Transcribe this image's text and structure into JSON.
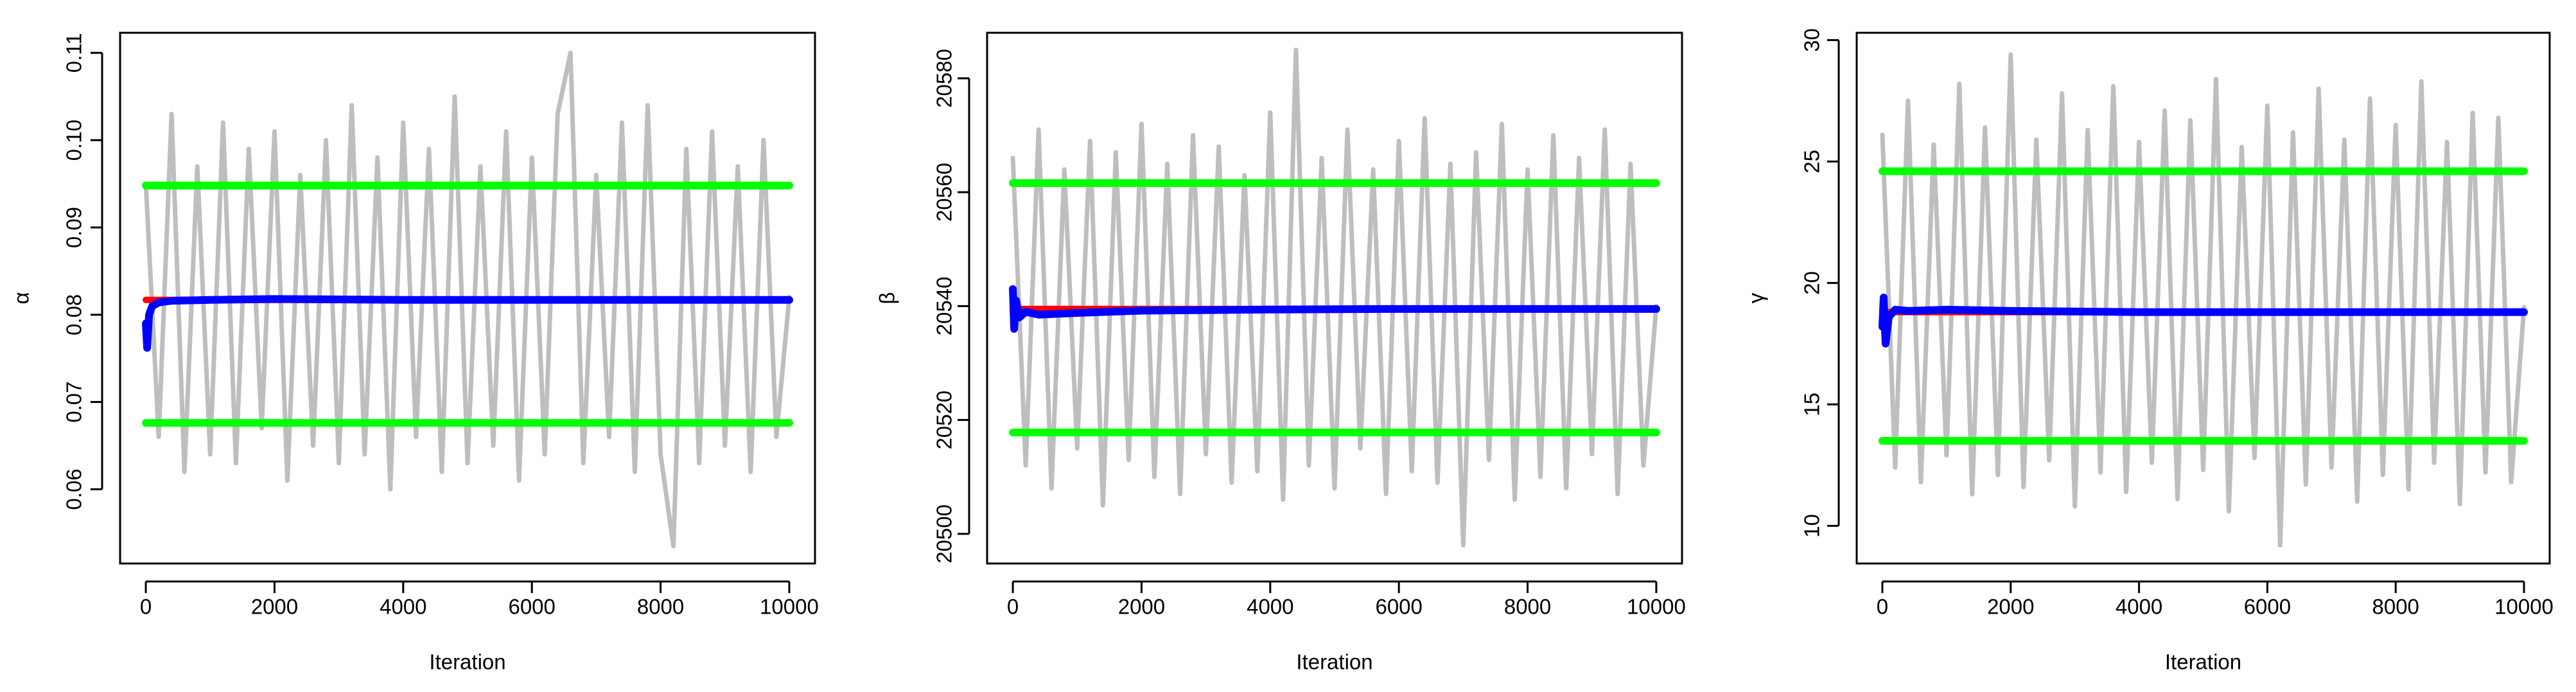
{
  "chart_data": [
    {
      "type": "line",
      "x_label": "Iteration",
      "y_label": "α",
      "xlim": [
        -400,
        10400
      ],
      "ylim": [
        0.0515,
        0.1123
      ],
      "xticks": [
        0,
        2000,
        4000,
        6000,
        8000,
        10000
      ],
      "yticks": [
        0.06,
        0.07,
        0.08,
        0.09,
        {
          "value": 0.1,
          "label": "0.10"
        },
        0.11
      ],
      "series": [
        {
          "color": "#bebebe",
          "x": [
            0,
            200,
            400,
            600,
            800,
            1000,
            1200,
            1400,
            1600,
            1800,
            2000,
            2200,
            2400,
            2600,
            2800,
            3000,
            3200,
            3400,
            3600,
            3800,
            4000,
            4200,
            4400,
            4600,
            4800,
            5000,
            5200,
            5400,
            5600,
            5800,
            6000,
            6200,
            6400,
            6600,
            6800,
            7000,
            7200,
            7400,
            7600,
            7800,
            8000,
            8200,
            8400,
            8600,
            8800,
            9000,
            9200,
            9400,
            9600,
            9800,
            10000
          ],
          "values": [
            0.095,
            0.066,
            0.103,
            0.062,
            0.097,
            0.064,
            0.102,
            0.063,
            0.099,
            0.067,
            0.101,
            0.061,
            0.096,
            0.065,
            0.1,
            0.063,
            0.104,
            0.064,
            0.098,
            0.06,
            0.102,
            0.066,
            0.099,
            0.062,
            0.105,
            0.063,
            0.097,
            0.065,
            0.101,
            0.061,
            0.098,
            0.064,
            0.103,
            0.11,
            0.063,
            0.096,
            0.066,
            0.102,
            0.062,
            0.104,
            0.064,
            0.0535,
            0.099,
            0.063,
            0.101,
            0.065,
            0.097,
            0.062,
            0.1,
            0.066,
            0.082
          ]
        },
        {
          "color": "#ff0000",
          "x": [
            0,
            10000
          ],
          "values": [
            0.0817,
            0.0817
          ]
        },
        {
          "color": "#00ff00",
          "x": [
            0,
            10000
          ],
          "values": [
            0.0676,
            0.0676
          ]
        },
        {
          "color": "#00ff00",
          "x": [
            0,
            10000
          ],
          "values": [
            0.0948,
            0.0948
          ]
        },
        {
          "color": "#0000ff",
          "x": [
            0,
            20,
            50,
            100,
            200,
            400,
            1000,
            2000,
            4000,
            6000,
            8000,
            10000
          ],
          "values": [
            0.079,
            0.0762,
            0.08,
            0.081,
            0.0814,
            0.0816,
            0.0817,
            0.0818,
            0.0817,
            0.0817,
            0.0817,
            0.0817
          ]
        }
      ]
    },
    {
      "type": "line",
      "x_label": "Iteration",
      "y_label": "β",
      "xlim": [
        -400,
        10400
      ],
      "ylim": [
        20494.8,
        20588
      ],
      "xticks": [
        0,
        2000,
        4000,
        6000,
        8000,
        10000
      ],
      "yticks": [
        20500,
        20520,
        20540,
        20560,
        20580
      ],
      "series": [
        {
          "color": "#bebebe",
          "x": [
            0,
            200,
            400,
            600,
            800,
            1000,
            1200,
            1400,
            1600,
            1800,
            2000,
            2200,
            2400,
            2600,
            2800,
            3000,
            3200,
            3400,
            3600,
            3800,
            4000,
            4200,
            4400,
            4600,
            4800,
            5000,
            5200,
            5400,
            5600,
            5800,
            6000,
            6200,
            6400,
            6600,
            6800,
            7000,
            7200,
            7400,
            7600,
            7800,
            8000,
            8200,
            8400,
            8600,
            8800,
            9000,
            9200,
            9400,
            9600,
            9800,
            10000
          ],
          "values": [
            20566,
            20512,
            20571,
            20508,
            20564,
            20515,
            20569,
            20505,
            20567,
            20513,
            20572,
            20510,
            20565,
            20507,
            20570,
            20514,
            20568,
            20509,
            20563,
            20511,
            20574,
            20506,
            20585,
            20512,
            20566,
            20508,
            20571,
            20515,
            20564,
            20507,
            20569,
            20511,
            20573,
            20509,
            20565,
            20498,
            20567,
            20513,
            20572,
            20506,
            20564,
            20510,
            20570,
            20508,
            20566,
            20514,
            20571,
            20507,
            20565,
            20512,
            20540
          ]
        },
        {
          "color": "#ff0000",
          "x": [
            0,
            10000
          ],
          "values": [
            20539.5,
            20539.5
          ]
        },
        {
          "color": "#00ff00",
          "x": [
            0,
            10000
          ],
          "values": [
            20517.8,
            20517.8
          ]
        },
        {
          "color": "#00ff00",
          "x": [
            0,
            10000
          ],
          "values": [
            20561.6,
            20561.6
          ]
        },
        {
          "color": "#0000ff",
          "x": [
            0,
            20,
            50,
            100,
            200,
            400,
            1000,
            2000,
            4000,
            6000,
            8000,
            10000
          ],
          "values": [
            20543,
            20536,
            20541,
            20538,
            20539,
            20538.5,
            20538.8,
            20539.2,
            20539.4,
            20539.5,
            20539.5,
            20539.5
          ]
        }
      ]
    },
    {
      "type": "line",
      "x_label": "Iteration",
      "y_label": "γ",
      "xlim": [
        -400,
        10400
      ],
      "ylim": [
        8.45,
        30.3
      ],
      "xticks": [
        0,
        2000,
        4000,
        6000,
        8000,
        10000
      ],
      "yticks": [
        10,
        15,
        20,
        25,
        30
      ],
      "series": [
        {
          "color": "#bebebe",
          "x": [
            0,
            200,
            400,
            600,
            800,
            1000,
            1200,
            1400,
            1600,
            1800,
            2000,
            2200,
            2400,
            2600,
            2800,
            3000,
            3200,
            3400,
            3600,
            3800,
            4000,
            4200,
            4400,
            4600,
            4800,
            5000,
            5200,
            5400,
            5600,
            5800,
            6000,
            6200,
            6400,
            6600,
            6800,
            7000,
            7200,
            7400,
            7600,
            7800,
            8000,
            8200,
            8400,
            8600,
            8800,
            9000,
            9200,
            9400,
            9600,
            9800,
            10000
          ],
          "values": [
            26.1,
            12.4,
            27.5,
            11.8,
            25.7,
            12.9,
            28.2,
            11.3,
            26.4,
            12.1,
            29.4,
            11.6,
            25.9,
            12.7,
            27.8,
            10.8,
            26.3,
            12.2,
            28.1,
            11.4,
            25.8,
            12.6,
            27.1,
            11.1,
            26.7,
            12.3,
            28.4,
            10.6,
            25.6,
            12.8,
            27.3,
            9.2,
            26.2,
            11.7,
            28.0,
            12.4,
            25.9,
            11.0,
            27.6,
            12.1,
            26.5,
            11.5,
            28.3,
            12.6,
            25.8,
            10.9,
            27.0,
            12.2,
            26.8,
            11.8,
            19.0
          ]
        },
        {
          "color": "#ff0000",
          "x": [
            0,
            10000
          ],
          "values": [
            18.8,
            18.8
          ]
        },
        {
          "color": "#00ff00",
          "x": [
            0,
            10000
          ],
          "values": [
            13.5,
            13.5
          ]
        },
        {
          "color": "#00ff00",
          "x": [
            0,
            10000
          ],
          "values": [
            24.6,
            24.6
          ]
        },
        {
          "color": "#0000ff",
          "x": [
            0,
            20,
            50,
            100,
            200,
            400,
            1000,
            2000,
            4000,
            6000,
            8000,
            10000
          ],
          "values": [
            18.2,
            19.4,
            17.5,
            18.6,
            18.9,
            18.85,
            18.9,
            18.85,
            18.8,
            18.8,
            18.8,
            18.8
          ]
        }
      ]
    }
  ]
}
